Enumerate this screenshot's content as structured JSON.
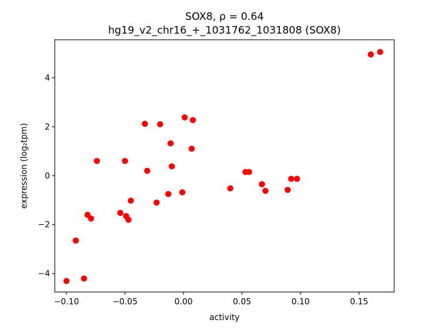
{
  "chart_data": {
    "type": "scatter",
    "title": "SOX8, ρ = 0.64",
    "subtitle": "hg19_v2_chr16_+_1031762_1031808 (SOX8)",
    "xlabel": "activity",
    "ylabel": "expression (log₂tpm)",
    "xlim": [
      -0.11,
      0.18
    ],
    "ylim": [
      -4.75,
      5.55
    ],
    "x_ticks": [
      -0.1,
      -0.05,
      0.0,
      0.05,
      0.1,
      0.15
    ],
    "x_tick_labels": [
      "−0.10",
      "−0.05",
      "0.00",
      "0.05",
      "0.10",
      "0.15"
    ],
    "y_ticks": [
      -4,
      -2,
      0,
      2,
      4
    ],
    "y_tick_labels": [
      "−4",
      "−2",
      "0",
      "2",
      "4"
    ],
    "grid": false,
    "marker_color": "#ff0000",
    "points": [
      {
        "x": -0.1,
        "y": -4.3
      },
      {
        "x": -0.085,
        "y": -4.2
      },
      {
        "x": -0.092,
        "y": -2.65
      },
      {
        "x": -0.082,
        "y": -1.6
      },
      {
        "x": -0.079,
        "y": -1.75
      },
      {
        "x": -0.074,
        "y": 0.6
      },
      {
        "x": -0.054,
        "y": -1.52
      },
      {
        "x": -0.049,
        "y": -1.65
      },
      {
        "x": -0.047,
        "y": -1.8
      },
      {
        "x": -0.045,
        "y": -1.02
      },
      {
        "x": -0.05,
        "y": 0.6
      },
      {
        "x": -0.033,
        "y": 2.12
      },
      {
        "x": -0.031,
        "y": 0.2
      },
      {
        "x": -0.023,
        "y": -1.1
      },
      {
        "x": -0.02,
        "y": 2.1
      },
      {
        "x": -0.013,
        "y": -0.75
      },
      {
        "x": -0.011,
        "y": 1.32
      },
      {
        "x": -0.01,
        "y": 0.38
      },
      {
        "x": -0.001,
        "y": -0.68
      },
      {
        "x": 0.001,
        "y": 2.38
      },
      {
        "x": 0.007,
        "y": 1.1
      },
      {
        "x": 0.008,
        "y": 2.27
      },
      {
        "x": 0.04,
        "y": -0.52
      },
      {
        "x": 0.053,
        "y": 0.15
      },
      {
        "x": 0.056,
        "y": 0.15
      },
      {
        "x": 0.067,
        "y": -0.35
      },
      {
        "x": 0.07,
        "y": -0.62
      },
      {
        "x": 0.089,
        "y": -0.58
      },
      {
        "x": 0.092,
        "y": -0.13
      },
      {
        "x": 0.097,
        "y": -0.13
      },
      {
        "x": 0.16,
        "y": 4.95
      },
      {
        "x": 0.168,
        "y": 5.05
      }
    ]
  }
}
